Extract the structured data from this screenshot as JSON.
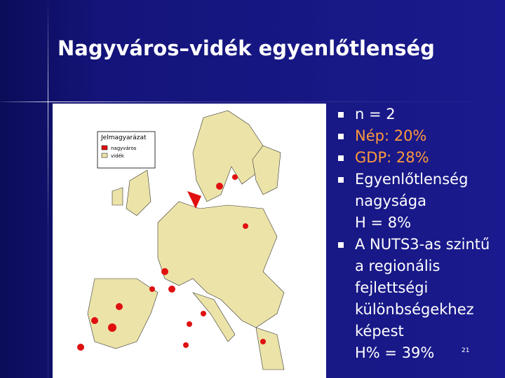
{
  "slide": {
    "title": "Nagyváros–vidék egyenlőtlenség",
    "map": {
      "legend": {
        "title": "Jelmagyarázat",
        "items": [
          "nagyváros",
          "vidék"
        ]
      }
    },
    "bullets": [
      {
        "lines": [
          "n = 2"
        ]
      },
      {
        "lines": [
          "Nép: 20%"
        ]
      },
      {
        "lines": [
          "GDP: 28%"
        ]
      },
      {
        "lines": [
          "Egyenlőtlenség nagysága"
        ],
        "continuation": [
          "H = 8%"
        ]
      },
      {
        "lines": [
          "A NUTS3-as szintű a regionális fejlettségi különbségekhez képest"
        ],
        "continuation": [
          "H% = 39%"
        ]
      }
    ],
    "page_number": "21"
  }
}
